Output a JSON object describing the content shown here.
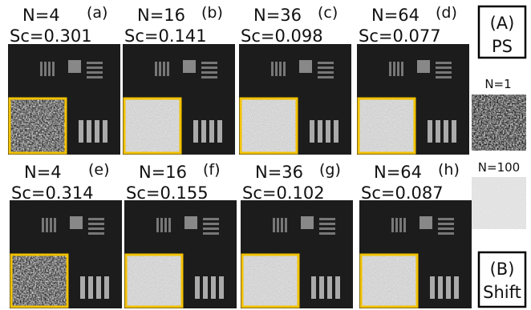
{
  "panels": [
    {
      "n": "N=4",
      "sc": "Sc=0.301",
      "label": "(a)"
    },
    {
      "n": "N=16",
      "sc": "Sc=0.141",
      "label": "(b)"
    },
    {
      "n": "N=36",
      "sc": "Sc=0.098",
      "label": "(c)"
    },
    {
      "n": "N=64",
      "sc": "Sc=0.077",
      "label": "(d)"
    },
    {
      "n": "N=4",
      "sc": "Sc=0.314",
      "label": "(e)"
    },
    {
      "n": "N=16",
      "sc": "Sc=0.155",
      "label": "(f)"
    },
    {
      "n": "N=36",
      "sc": "Sc=0.102",
      "label": "(g)"
    },
    {
      "n": "N=64",
      "sc": "Sc=0.087",
      "label": "(h)"
    }
  ],
  "side": {
    "top_label": "(A)",
    "top_name": "PS",
    "n1": "N=1",
    "n100": "N=100",
    "bottom_label": "(B)",
    "bottom_name": "Shift"
  }
}
